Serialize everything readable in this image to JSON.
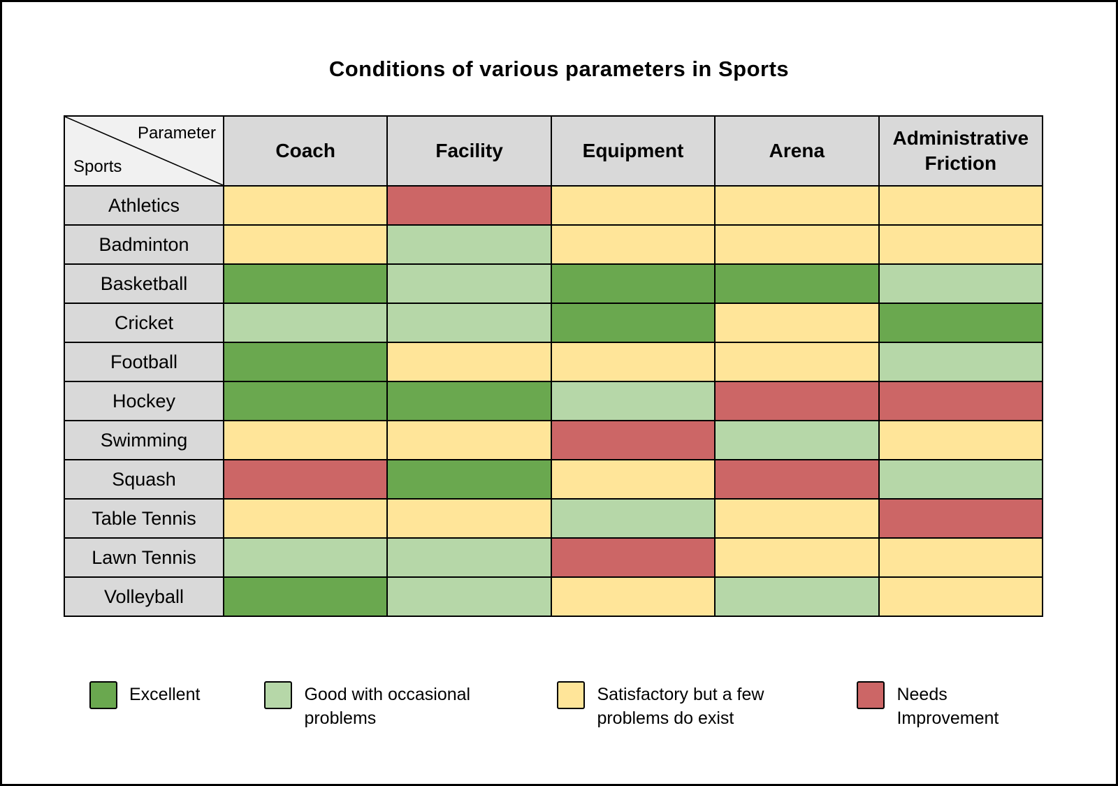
{
  "title": "Conditions of various parameters in Sports",
  "corner": {
    "top_right": "Parameter",
    "bottom_left": "Sports"
  },
  "colors": {
    "excellent": "#6aa84f",
    "good": "#b6d7a8",
    "satisfactory": "#ffe599",
    "needs_improvement": "#cc6666"
  },
  "chart_data": {
    "type": "heatmap",
    "title": "Conditions of various parameters in Sports",
    "columns": [
      "Coach",
      "Facility",
      "Equipment",
      "Arena",
      "Administrative Friction"
    ],
    "rows": [
      {
        "sport": "Athletics",
        "ratings": [
          "satisfactory",
          "needs_improvement",
          "satisfactory",
          "satisfactory",
          "satisfactory"
        ]
      },
      {
        "sport": "Badminton",
        "ratings": [
          "satisfactory",
          "good",
          "satisfactory",
          "satisfactory",
          "satisfactory"
        ]
      },
      {
        "sport": "Basketball",
        "ratings": [
          "excellent",
          "good",
          "excellent",
          "excellent",
          "good"
        ]
      },
      {
        "sport": "Cricket",
        "ratings": [
          "good",
          "good",
          "excellent",
          "satisfactory",
          "excellent"
        ]
      },
      {
        "sport": "Football",
        "ratings": [
          "excellent",
          "satisfactory",
          "satisfactory",
          "satisfactory",
          "good"
        ]
      },
      {
        "sport": "Hockey",
        "ratings": [
          "excellent",
          "excellent",
          "good",
          "needs_improvement",
          "needs_improvement"
        ]
      },
      {
        "sport": "Swimming",
        "ratings": [
          "satisfactory",
          "satisfactory",
          "needs_improvement",
          "good",
          "satisfactory"
        ]
      },
      {
        "sport": "Squash",
        "ratings": [
          "needs_improvement",
          "excellent",
          "satisfactory",
          "needs_improvement",
          "good"
        ]
      },
      {
        "sport": "Table Tennis",
        "ratings": [
          "satisfactory",
          "satisfactory",
          "good",
          "satisfactory",
          "needs_improvement"
        ]
      },
      {
        "sport": "Lawn Tennis",
        "ratings": [
          "good",
          "good",
          "needs_improvement",
          "satisfactory",
          "satisfactory"
        ]
      },
      {
        "sport": "Volleyball",
        "ratings": [
          "excellent",
          "good",
          "satisfactory",
          "good",
          "satisfactory"
        ]
      }
    ],
    "legend_position": "bottom"
  },
  "legend": {
    "items": [
      {
        "label": "Excellent",
        "color_key": "excellent"
      },
      {
        "label": "Good with occasional problems",
        "color_key": "good"
      },
      {
        "label": "Satisfactory but a few problems do exist",
        "color_key": "satisfactory"
      },
      {
        "label": "Needs Improvement",
        "color_key": "needs_improvement"
      }
    ]
  }
}
